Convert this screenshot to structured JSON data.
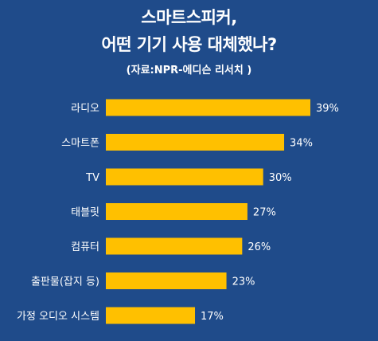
{
  "header": {
    "title_line1": "스마트스피커,",
    "title_line2": "어떤 기기 사용 대체했나?",
    "source": "(자료:NPR-에디슨 리서치 )"
  },
  "colors": {
    "background": "#1f4b8a",
    "bar": "#ffc000",
    "text": "#ffffff"
  },
  "chart_data": {
    "type": "bar",
    "orientation": "horizontal",
    "title": "스마트스피커, 어떤 기기 사용 대체했나?",
    "subtitle": "(자료:NPR-에디슨 리서치 )",
    "categories": [
      "라디오",
      "스마트폰",
      "TV",
      "태블릿",
      "컴퓨터",
      "출판물(잡지 등)",
      "가정 오디오 시스템"
    ],
    "values": [
      39,
      34,
      30,
      27,
      26,
      23,
      17
    ],
    "value_labels": [
      "39%",
      "34%",
      "30%",
      "27%",
      "26%",
      "23%",
      "17%"
    ],
    "unit": "%",
    "xlim": [
      0,
      40
    ],
    "grid": false,
    "legend": "none"
  }
}
